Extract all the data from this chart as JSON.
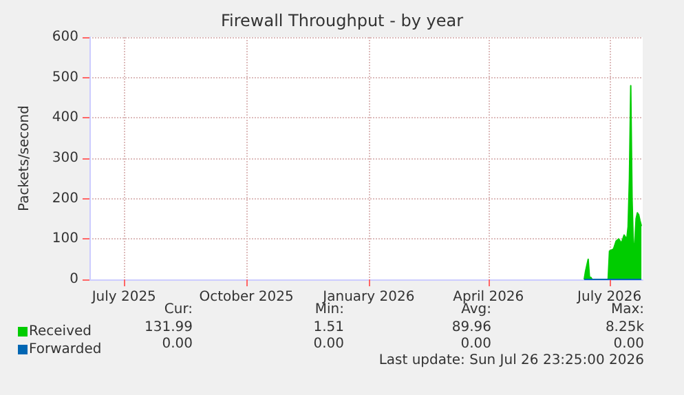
{
  "chart_data": {
    "type": "area",
    "title": "Firewall Throughput - by year",
    "ylabel": "Packets/second",
    "xlim": [
      "2025-06-05",
      "2026-07-26"
    ],
    "ylim": [
      0,
      600
    ],
    "yticks": [
      0,
      100,
      200,
      300,
      400,
      500,
      600
    ],
    "xticks": [
      {
        "value": "2025-07-01",
        "label": "July 2025"
      },
      {
        "value": "2025-10-01",
        "label": "October 2025"
      },
      {
        "value": "2026-01-01",
        "label": "January 2026"
      },
      {
        "value": "2026-04-01",
        "label": "April 2026"
      },
      {
        "value": "2026-07-01",
        "label": "July 2026"
      }
    ],
    "grid": true,
    "legend": "bottom left",
    "series": [
      {
        "name": "Received",
        "color": "#00cc00",
        "x": [
          "2026-06-12",
          "2026-06-13",
          "2026-06-15",
          "2026-06-16",
          "2026-06-17",
          "2026-06-18",
          "2026-06-30",
          "2026-07-01",
          "2026-07-04",
          "2026-07-06",
          "2026-07-08",
          "2026-07-10",
          "2026-07-12",
          "2026-07-14",
          "2026-07-15",
          "2026-07-16",
          "2026-07-17",
          "2026-07-18",
          "2026-07-19",
          "2026-07-20",
          "2026-07-21",
          "2026-07-22",
          "2026-07-23",
          "2026-07-24",
          "2026-07-25"
        ],
        "values": [
          0,
          20,
          50,
          5,
          5,
          0,
          0,
          70,
          75,
          95,
          100,
          90,
          110,
          100,
          130,
          250,
          480,
          200,
          80,
          90,
          150,
          165,
          160,
          145,
          132
        ]
      },
      {
        "name": "Forwarded",
        "type": "line",
        "color": "#0066b3",
        "x": [
          "2026-06-12",
          "2026-07-25"
        ],
        "values": [
          0,
          0
        ]
      }
    ],
    "annotations": [
      "Cur:",
      "Min:",
      "Avg:",
      "Max:",
      "131.99",
      "1.51",
      "89.96",
      "8.25k",
      "0.00",
      "0.00",
      "0.00",
      "0.00",
      "Last update: Sun Jul 26 23:25:00 2026"
    ]
  }
}
